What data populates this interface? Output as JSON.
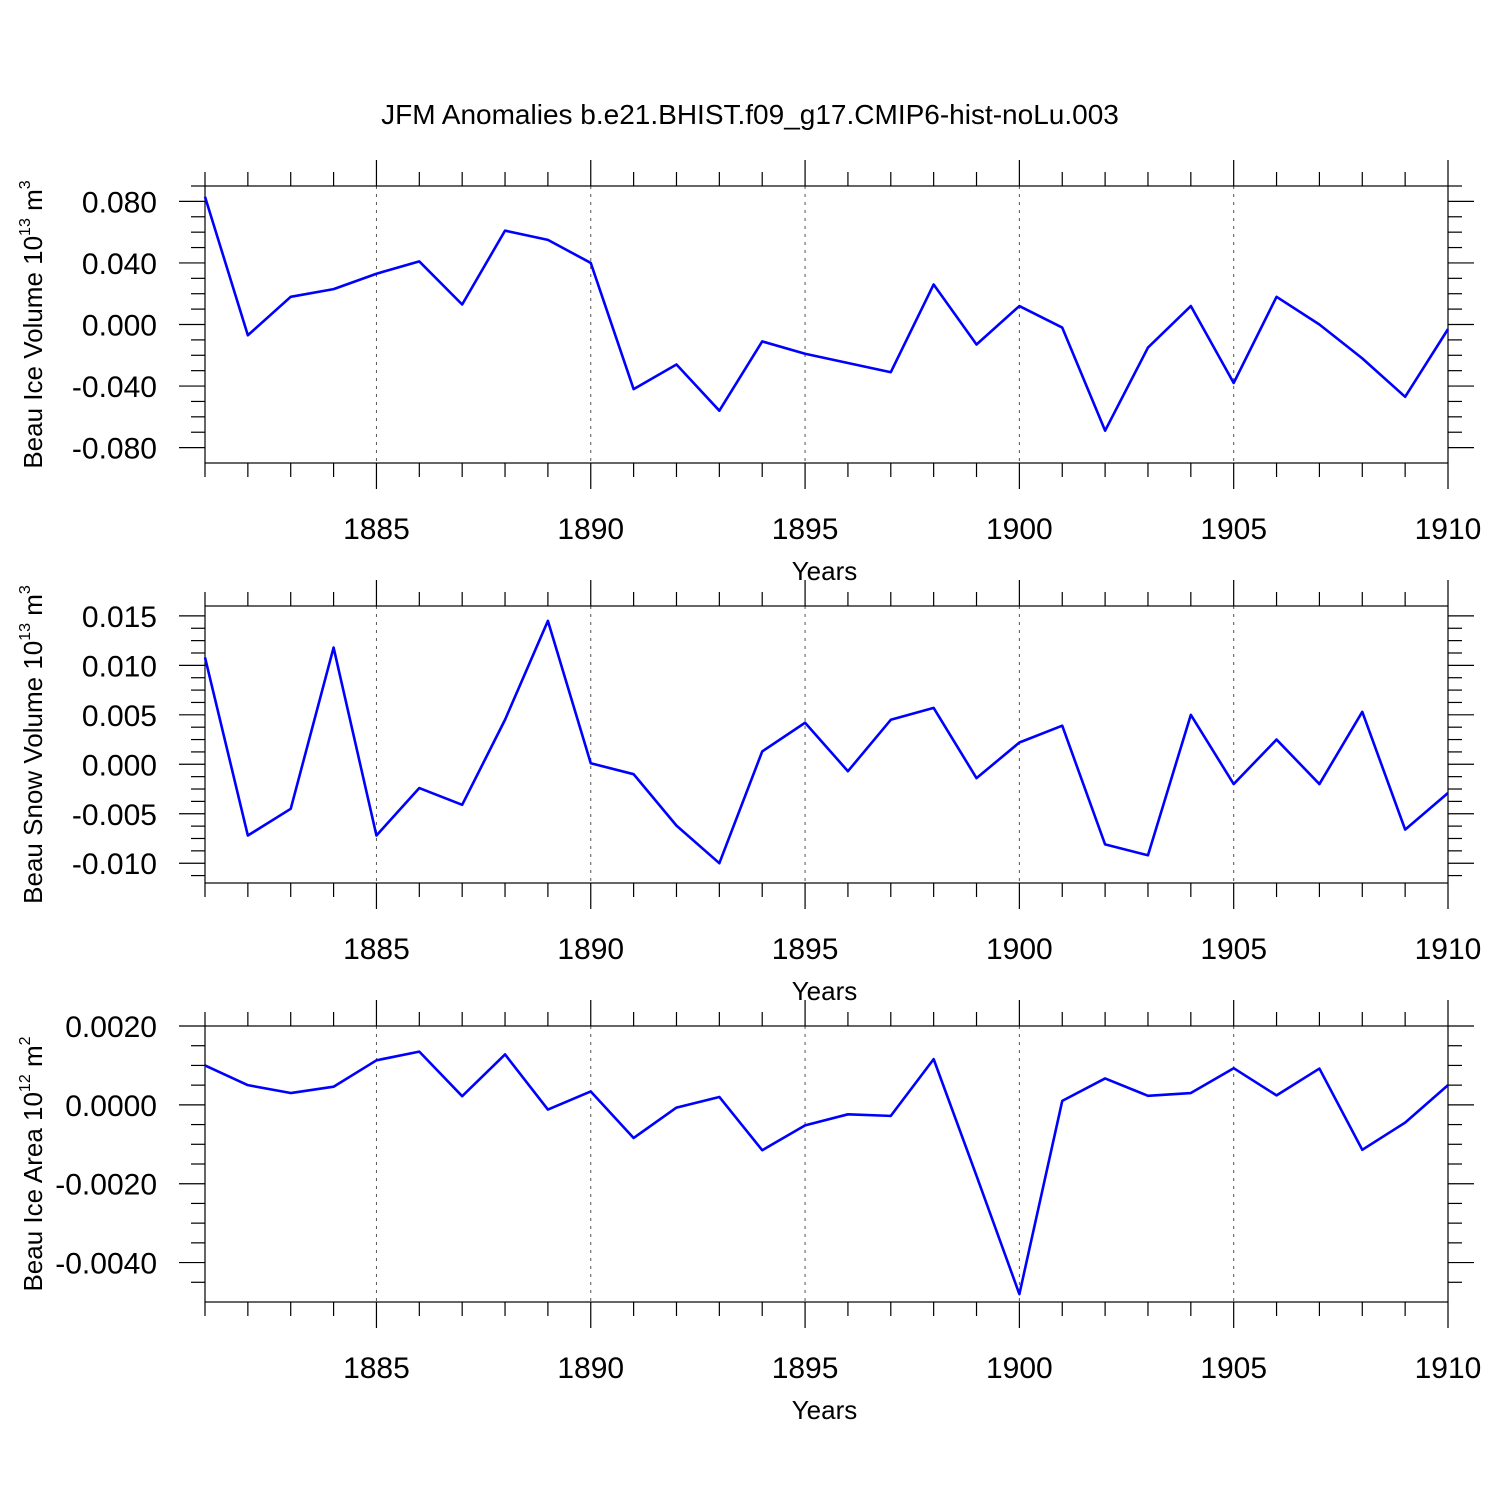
{
  "title": "JFM Anomalies b.e21.BHIST.f09_g17.CMIP6-hist-noLu.003",
  "line_color": "#0000ff",
  "chart_data": [
    {
      "type": "line",
      "ylabel": "Beau Ice Volume 10",
      "ylabel_exp": "13",
      "ylabel_unit": " m",
      "ylabel_unit_exp": "3",
      "xlabel": "Years",
      "xlim": [
        1881,
        1910
      ],
      "ylim": [
        -0.09,
        0.09
      ],
      "x_ticks": [
        1885,
        1890,
        1895,
        1900,
        1905,
        1910
      ],
      "x_tick_labels": [
        "1885",
        "1890",
        "1895",
        "1900",
        "1905",
        "1910"
      ],
      "y_ticks": [
        0.08,
        0.04,
        0.0,
        -0.04,
        -0.08
      ],
      "y_tick_labels": [
        "0.080",
        "0.040",
        "0.000",
        "-0.040",
        "-0.080"
      ],
      "grid_x": true,
      "x": [
        1881,
        1882,
        1883,
        1884,
        1885,
        1886,
        1887,
        1888,
        1889,
        1890,
        1891,
        1892,
        1893,
        1894,
        1895,
        1896,
        1897,
        1898,
        1899,
        1900,
        1901,
        1902,
        1903,
        1904,
        1905,
        1906,
        1907,
        1908,
        1909,
        1910
      ],
      "y": [
        0.083,
        -0.007,
        0.018,
        0.023,
        0.033,
        0.041,
        0.013,
        0.061,
        0.055,
        0.04,
        -0.042,
        -0.026,
        -0.056,
        -0.011,
        -0.019,
        -0.025,
        -0.031,
        0.026,
        -0.013,
        0.012,
        -0.002,
        -0.069,
        -0.015,
        0.012,
        -0.038,
        0.018,
        0.0,
        -0.022,
        -0.047,
        -0.003
      ]
    },
    {
      "type": "line",
      "ylabel": "Beau Snow Volume 10",
      "ylabel_exp": "13",
      "ylabel_unit": " m",
      "ylabel_unit_exp": "3",
      "xlabel": "Years",
      "xlim": [
        1881,
        1910
      ],
      "ylim": [
        -0.012,
        0.016
      ],
      "x_ticks": [
        1885,
        1890,
        1895,
        1900,
        1905,
        1910
      ],
      "x_tick_labels": [
        "1885",
        "1890",
        "1895",
        "1900",
        "1905",
        "1910"
      ],
      "y_ticks": [
        0.015,
        0.01,
        0.005,
        0.0,
        -0.005,
        -0.01
      ],
      "y_tick_labels": [
        "0.015",
        "0.010",
        "0.005",
        "0.000",
        "-0.005",
        "-0.010"
      ],
      "grid_x": true,
      "x": [
        1881,
        1882,
        1883,
        1884,
        1885,
        1886,
        1887,
        1888,
        1889,
        1890,
        1891,
        1892,
        1893,
        1894,
        1895,
        1896,
        1897,
        1898,
        1899,
        1900,
        1901,
        1902,
        1903,
        1904,
        1905,
        1906,
        1907,
        1908,
        1909,
        1910
      ],
      "y": [
        0.0108,
        -0.0072,
        -0.0045,
        0.0118,
        -0.0072,
        -0.0024,
        -0.0041,
        0.0045,
        0.0145,
        0.0001,
        -0.001,
        -0.0062,
        -0.01,
        0.0013,
        0.0042,
        -0.0007,
        0.0045,
        0.0057,
        -0.0014,
        0.0022,
        0.0039,
        -0.0081,
        -0.0092,
        0.005,
        -0.002,
        0.0025,
        -0.002,
        0.0053,
        -0.0066,
        -0.0029
      ]
    },
    {
      "type": "line",
      "ylabel": "Beau Ice Area 10",
      "ylabel_exp": "12",
      "ylabel_unit": " m",
      "ylabel_unit_exp": "2",
      "xlabel": "Years",
      "xlim": [
        1881,
        1910
      ],
      "ylim": [
        -0.005,
        0.002
      ],
      "x_ticks": [
        1885,
        1890,
        1895,
        1900,
        1905,
        1910
      ],
      "x_tick_labels": [
        "1885",
        "1890",
        "1895",
        "1900",
        "1905",
        "1910"
      ],
      "y_ticks": [
        0.002,
        0.0,
        -0.002,
        -0.004
      ],
      "y_tick_labels": [
        "0.0020",
        "0.0000",
        "-0.0020",
        "-0.0040"
      ],
      "grid_x": true,
      "x": [
        1881,
        1882,
        1883,
        1884,
        1885,
        1886,
        1887,
        1888,
        1889,
        1890,
        1891,
        1892,
        1893,
        1894,
        1895,
        1896,
        1897,
        1898,
        1899,
        1900,
        1901,
        1902,
        1903,
        1904,
        1905,
        1906,
        1907,
        1908,
        1909,
        1910
      ],
      "y": [
        0.001,
        0.0005,
        0.0003,
        0.00046,
        0.00113,
        0.00135,
        0.00022,
        0.00128,
        -0.00012,
        0.00034,
        -0.00084,
        -7e-05,
        0.0002,
        -0.00115,
        -0.00052,
        -0.00024,
        -0.00028,
        0.00116,
        -0.0018,
        -0.0048,
        0.0001,
        0.00067,
        0.00023,
        0.0003,
        0.00093,
        0.00024,
        0.00092,
        -0.00114,
        -0.00045,
        0.0005
      ]
    }
  ]
}
